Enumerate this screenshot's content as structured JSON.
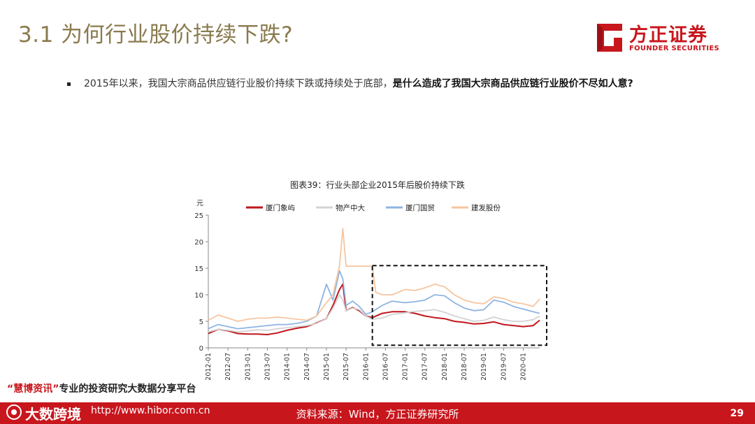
{
  "slide": {
    "title": "3.1 为何行业股价持续下跌?",
    "page_number": "29"
  },
  "brand": {
    "name": "方正证券",
    "name_en": "FOUNDER SECURITIES",
    "color": "#c8161d"
  },
  "bullet": {
    "text_normal": "2015年以来，我国大宗商品供应链行业股价持续下跌或持续处于底部，",
    "text_bold": "是什么造成了我国大宗商品供应链行业股价不尽如人意?"
  },
  "footer": {
    "source": "资料来源：Wind，方正证券研究所"
  },
  "watermark": {
    "quote_open": "“",
    "quote_word": "慧博资讯",
    "quote_close": "”",
    "line1_rest": "专业的投资研究大数据分享平台",
    "line2": "大数跨境",
    "url": "http://www.hibor.com.cn"
  },
  "chart_data": {
    "type": "line",
    "title": "图表39：行业头部企业2015年后股价持续下跌",
    "ylabel": "元",
    "ylim": [
      0,
      25
    ],
    "yticks": [
      0,
      5,
      10,
      15,
      20,
      25
    ],
    "xlim": [
      "2012-01",
      "2020-06"
    ],
    "xticks": [
      "2012-01",
      "2012-07",
      "2013-01",
      "2013-07",
      "2014-01",
      "2014-07",
      "2015-01",
      "2015-07",
      "2016-01",
      "2016-07",
      "2017-01",
      "2017-07",
      "2018-01",
      "2018-07",
      "2019-01",
      "2019-07",
      "2020-01"
    ],
    "legend_position": "top",
    "grid": false,
    "highlight_box": {
      "x_start": "2016-03",
      "x_end": "2020-06",
      "y_start": 0.5,
      "y_end": 15.5,
      "style": "dashed"
    },
    "series": [
      {
        "name": "厦门象屿",
        "color": "#c0161c",
        "x": [
          "2012-01",
          "2012-04",
          "2012-07",
          "2012-10",
          "2013-01",
          "2013-04",
          "2013-07",
          "2013-10",
          "2014-01",
          "2014-04",
          "2014-07",
          "2014-10",
          "2015-01",
          "2015-03",
          "2015-05",
          "2015-06",
          "2015-07",
          "2015-09",
          "2015-11",
          "2016-01",
          "2016-03",
          "2016-06",
          "2016-09",
          "2017-01",
          "2017-04",
          "2017-07",
          "2017-10",
          "2018-01",
          "2018-04",
          "2018-07",
          "2018-10",
          "2019-01",
          "2019-04",
          "2019-07",
          "2019-10",
          "2020-01",
          "2020-04",
          "2020-06"
        ],
        "y": [
          2.7,
          3.5,
          3.2,
          2.7,
          2.6,
          2.6,
          2.5,
          2.8,
          3.3,
          3.7,
          4.0,
          4.7,
          5.5,
          8.0,
          11.0,
          12.0,
          7.0,
          7.6,
          7.0,
          6.0,
          5.7,
          6.5,
          6.8,
          6.8,
          6.5,
          6.0,
          5.7,
          5.5,
          5.0,
          4.8,
          4.5,
          4.6,
          4.9,
          4.4,
          4.2,
          4.0,
          4.2,
          5.2
        ]
      },
      {
        "name": "物产中大",
        "color": "#d3d3d3",
        "x": [
          "2012-01",
          "2012-04",
          "2012-07",
          "2012-10",
          "2013-01",
          "2013-04",
          "2013-07",
          "2013-10",
          "2014-01",
          "2014-04",
          "2014-07",
          "2014-10",
          "2015-01",
          "2015-03",
          "2015-05",
          "2015-06",
          "2015-07",
          "2015-09",
          "2015-11",
          "2016-01",
          "2016-03",
          "2016-06",
          "2016-09",
          "2017-01",
          "2017-04",
          "2017-07",
          "2017-10",
          "2018-01",
          "2018-04",
          "2018-07",
          "2018-10",
          "2019-01",
          "2019-04",
          "2019-07",
          "2019-10",
          "2020-01",
          "2020-04",
          "2020-06"
        ],
        "y": [
          3.0,
          3.5,
          3.3,
          3.0,
          3.2,
          3.4,
          3.3,
          3.6,
          3.8,
          4.0,
          4.2,
          4.6,
          5.5,
          7.5,
          10.0,
          9.0,
          7.0,
          7.5,
          7.2,
          6.0,
          5.4,
          5.6,
          6.3,
          6.6,
          6.9,
          7.0,
          7.2,
          6.7,
          6.0,
          5.5,
          5.0,
          5.2,
          5.8,
          5.3,
          5.0,
          5.0,
          5.3,
          6.0
        ]
      },
      {
        "name": "厦门国贸",
        "color": "#8eb4e3",
        "x": [
          "2012-01",
          "2012-04",
          "2012-07",
          "2012-10",
          "2013-01",
          "2013-04",
          "2013-07",
          "2013-10",
          "2014-01",
          "2014-04",
          "2014-07",
          "2014-10",
          "2015-01",
          "2015-03",
          "2015-05",
          "2015-06",
          "2015-07",
          "2015-09",
          "2015-11",
          "2016-01",
          "2016-03",
          "2016-06",
          "2016-09",
          "2017-01",
          "2017-04",
          "2017-07",
          "2017-10",
          "2018-01",
          "2018-04",
          "2018-07",
          "2018-10",
          "2019-01",
          "2019-04",
          "2019-07",
          "2019-10",
          "2020-01",
          "2020-04",
          "2020-06"
        ],
        "y": [
          3.6,
          4.4,
          4.0,
          3.6,
          3.8,
          4.0,
          4.2,
          4.4,
          4.4,
          4.6,
          5.0,
          6.0,
          12.0,
          9.0,
          14.5,
          13.0,
          8.0,
          8.8,
          7.8,
          6.3,
          6.8,
          8.0,
          8.8,
          8.5,
          8.7,
          9.0,
          10.0,
          9.8,
          8.5,
          7.5,
          7.0,
          7.2,
          9.0,
          8.6,
          7.8,
          7.3,
          6.8,
          6.5
        ]
      },
      {
        "name": "建发股份",
        "color": "#f7c59f",
        "x": [
          "2012-01",
          "2012-04",
          "2012-07",
          "2012-10",
          "2013-01",
          "2013-04",
          "2013-07",
          "2013-10",
          "2014-01",
          "2014-04",
          "2014-07",
          "2014-10",
          "2015-01",
          "2015-03",
          "2015-05",
          "2015-06",
          "2015-07",
          "2015-08",
          "2015-12",
          "2016-03",
          "2016-04",
          "2016-06",
          "2016-09",
          "2017-01",
          "2017-04",
          "2017-07",
          "2017-10",
          "2018-01",
          "2018-04",
          "2018-07",
          "2018-10",
          "2019-01",
          "2019-04",
          "2019-07",
          "2019-10",
          "2020-01",
          "2020-04",
          "2020-06"
        ],
        "y": [
          5.2,
          6.2,
          5.6,
          5.0,
          5.4,
          5.6,
          5.6,
          5.8,
          5.6,
          5.4,
          5.2,
          6.0,
          8.5,
          10.0,
          15.5,
          22.5,
          15.4,
          15.4,
          15.4,
          15.4,
          10.5,
          10.0,
          10.0,
          11.0,
          10.8,
          11.3,
          12.0,
          11.5,
          10.0,
          9.0,
          8.5,
          8.3,
          9.6,
          9.3,
          8.6,
          8.3,
          7.8,
          9.2
        ]
      }
    ]
  }
}
